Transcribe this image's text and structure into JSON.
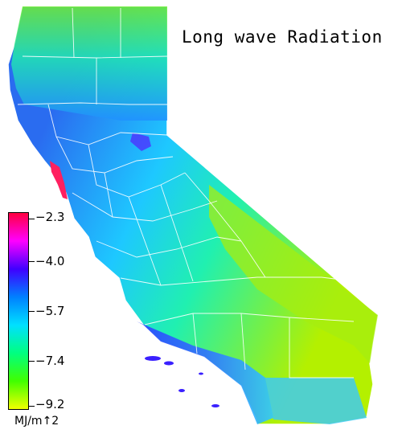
{
  "title": "Long wave Radiation",
  "legend": {
    "unit": "MJ/m↑2",
    "ticks": [
      "−2.3",
      "−4.0",
      "−5.7",
      "−7.4",
      "−9.2"
    ],
    "tick_values": [
      -2.3,
      -4.0,
      -5.7,
      -7.4,
      -9.2
    ],
    "gradient_colors": [
      "#ff0040",
      "#ff00ff",
      "#4000ff",
      "#0080ff",
      "#00e0ff",
      "#00ff80",
      "#40ff00",
      "#f0ff00"
    ]
  },
  "colors": {
    "high": "#ff2060",
    "mid_high": "#3c28ff",
    "mid": "#00b4ff",
    "mid_low": "#28f0b4",
    "low": "#a8f000",
    "boundary": "#ffffff"
  }
}
